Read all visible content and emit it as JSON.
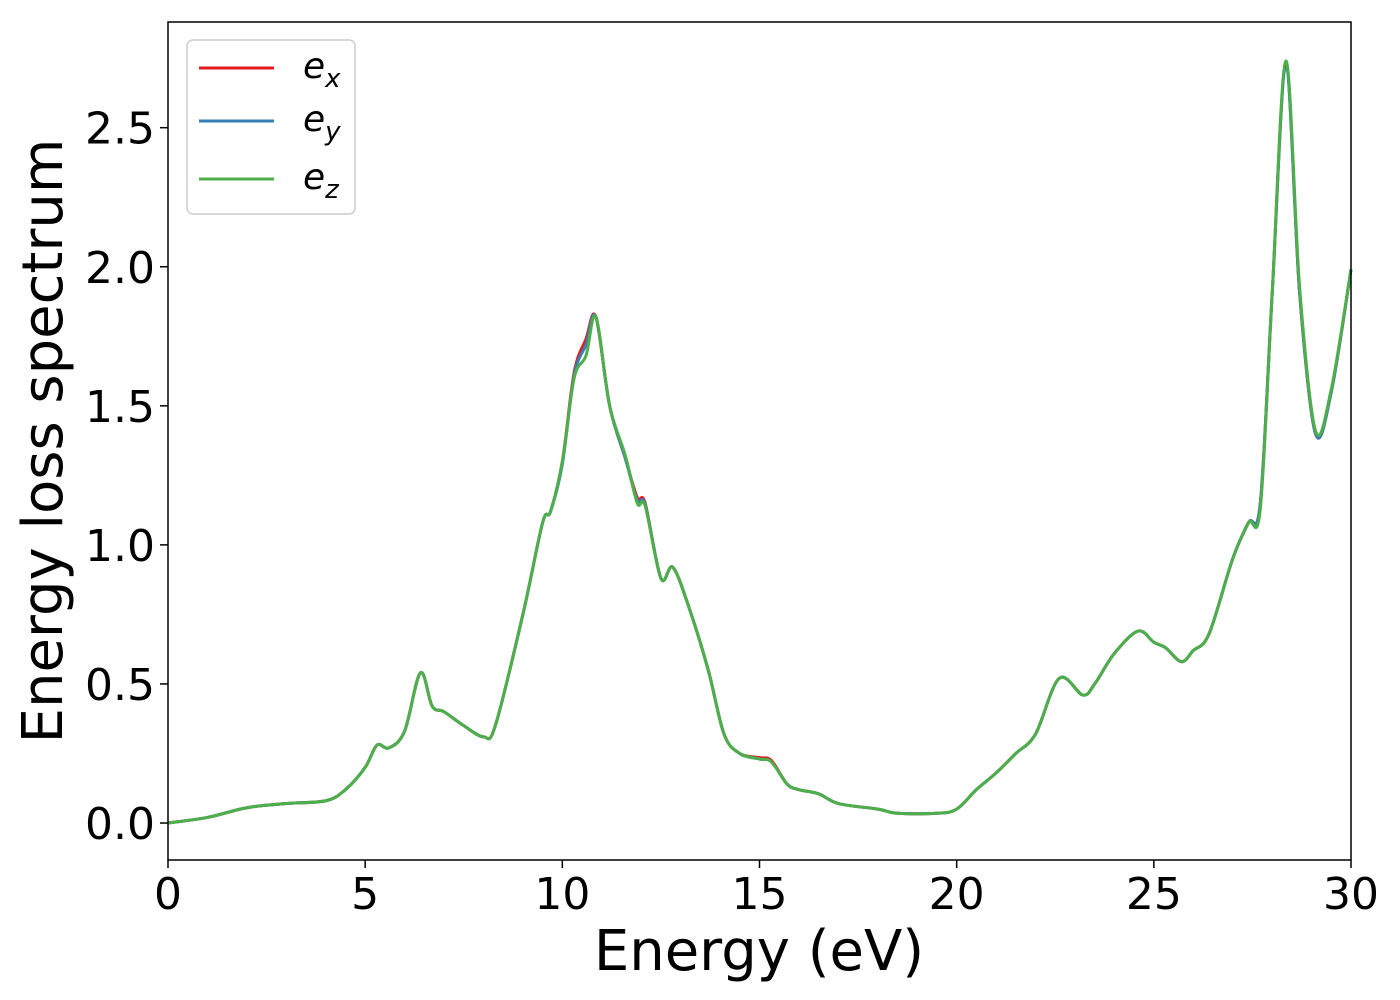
{
  "chart_data": {
    "type": "line",
    "title": "",
    "xlabel": "Energy (eV)",
    "ylabel": "Energy loss spectrum",
    "xlim": [
      0,
      30
    ],
    "ylim": [
      -0.133,
      2.88
    ],
    "xticks": [
      0,
      5,
      10,
      15,
      20,
      25,
      30
    ],
    "xtick_labels": [
      "0",
      "5",
      "10",
      "15",
      "20",
      "25",
      "30"
    ],
    "yticks": [
      0.0,
      0.5,
      1.0,
      1.5,
      2.0,
      2.5
    ],
    "ytick_labels": [
      "0.0",
      "0.5",
      "1.0",
      "1.5",
      "2.0",
      "2.5"
    ],
    "grid": false,
    "legend_placement": "top-left",
    "x": [
      0,
      1,
      2,
      3,
      4,
      4.5,
      5,
      5.3,
      5.6,
      6,
      6.4,
      6.7,
      7,
      7.5,
      8,
      8.3,
      9,
      9.5,
      9.7,
      10,
      10.3,
      10.6,
      10.85,
      11.2,
      11.6,
      11.9,
      12.1,
      12.5,
      12.8,
      13.2,
      13.7,
      14.1,
      14.5,
      15,
      15.3,
      15.7,
      16,
      16.5,
      17,
      18,
      18.5,
      19.5,
      20,
      20.5,
      21,
      21.5,
      22,
      22.6,
      23.2,
      23.5,
      24,
      24.6,
      25,
      25.3,
      25.7,
      26,
      26.4,
      27,
      27.4,
      27.7,
      28,
      28.35,
      28.7,
      29.1,
      29.5,
      30
    ],
    "series": [
      {
        "name": "e_x",
        "label_base": "e",
        "label_sub": "x",
        "color": "#e41a1c",
        "values": [
          0,
          0.02,
          0.055,
          0.07,
          0.08,
          0.12,
          0.2,
          0.28,
          0.27,
          0.33,
          0.54,
          0.42,
          0.4,
          0.35,
          0.31,
          0.35,
          0.75,
          1.08,
          1.12,
          1.3,
          1.62,
          1.74,
          1.82,
          1.5,
          1.31,
          1.17,
          1.15,
          0.88,
          0.92,
          0.78,
          0.55,
          0.32,
          0.25,
          0.235,
          0.225,
          0.14,
          0.12,
          0.105,
          0.07,
          0.05,
          0.035,
          0.035,
          0.05,
          0.12,
          0.18,
          0.25,
          0.32,
          0.52,
          0.46,
          0.5,
          0.61,
          0.69,
          0.65,
          0.63,
          0.58,
          0.62,
          0.68,
          0.95,
          1.08,
          1.15,
          1.9,
          2.72,
          1.9,
          1.4,
          1.55,
          1.99
        ]
      },
      {
        "name": "e_y",
        "label_base": "e",
        "label_sub": "y",
        "color": "#377eb8",
        "values": [
          0,
          0.02,
          0.055,
          0.07,
          0.08,
          0.12,
          0.2,
          0.28,
          0.27,
          0.33,
          0.54,
          0.42,
          0.4,
          0.35,
          0.31,
          0.35,
          0.75,
          1.08,
          1.12,
          1.29,
          1.61,
          1.72,
          1.82,
          1.5,
          1.31,
          1.16,
          1.145,
          0.88,
          0.92,
          0.78,
          0.55,
          0.32,
          0.25,
          0.23,
          0.22,
          0.14,
          0.12,
          0.105,
          0.07,
          0.05,
          0.035,
          0.035,
          0.05,
          0.12,
          0.18,
          0.25,
          0.32,
          0.52,
          0.46,
          0.5,
          0.61,
          0.69,
          0.65,
          0.63,
          0.58,
          0.62,
          0.68,
          0.95,
          1.08,
          1.15,
          1.9,
          2.71,
          1.9,
          1.4,
          1.55,
          1.99
        ]
      },
      {
        "name": "e_z",
        "label_base": "e",
        "label_sub": "z",
        "color": "#4daf4a",
        "values": [
          0,
          0.02,
          0.055,
          0.07,
          0.08,
          0.12,
          0.2,
          0.28,
          0.27,
          0.33,
          0.54,
          0.42,
          0.4,
          0.35,
          0.31,
          0.35,
          0.75,
          1.08,
          1.12,
          1.3,
          1.6,
          1.68,
          1.82,
          1.5,
          1.32,
          1.15,
          1.14,
          0.88,
          0.92,
          0.78,
          0.55,
          0.32,
          0.25,
          0.23,
          0.22,
          0.14,
          0.12,
          0.105,
          0.07,
          0.05,
          0.035,
          0.035,
          0.05,
          0.12,
          0.18,
          0.25,
          0.32,
          0.52,
          0.46,
          0.5,
          0.61,
          0.69,
          0.65,
          0.63,
          0.58,
          0.62,
          0.68,
          0.95,
          1.08,
          1.13,
          1.9,
          2.74,
          1.92,
          1.41,
          1.56,
          1.99
        ]
      }
    ]
  }
}
